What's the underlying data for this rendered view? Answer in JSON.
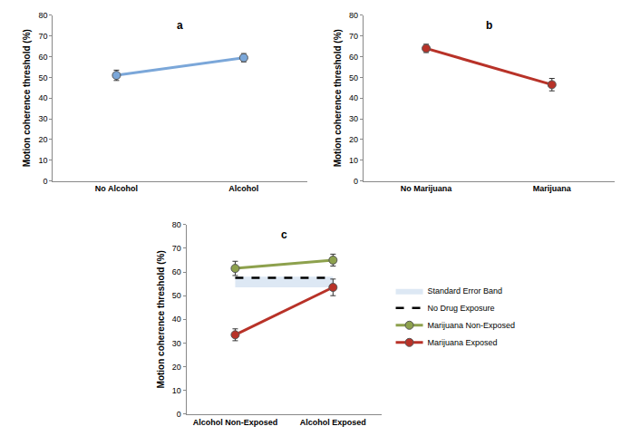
{
  "chart_data": [
    {
      "type": "line",
      "title": "a",
      "categories": [
        "No Alcohol",
        "Alcohol"
      ],
      "y_label": "Motion coherence threshold (%)",
      "ylim": [
        0,
        80
      ],
      "yticks": [
        0,
        10,
        20,
        30,
        40,
        50,
        60,
        70,
        80
      ],
      "grid": false,
      "series": [
        {
          "name": "Alcohol",
          "color": "#7ba7d9",
          "marker": "circle",
          "values": [
            51,
            59.5
          ],
          "errors": [
            2.5,
            2
          ]
        }
      ]
    },
    {
      "type": "line",
      "title": "b",
      "categories": [
        "No Marijuana",
        "Marijuana"
      ],
      "y_label": "Motion coherence threshold (%)",
      "ylim": [
        0,
        80
      ],
      "yticks": [
        0,
        10,
        20,
        30,
        40,
        50,
        60,
        70,
        80
      ],
      "grid": false,
      "series": [
        {
          "name": "Marijuana",
          "color": "#b83228",
          "marker": "circle",
          "values": [
            64,
            46.5
          ],
          "errors": [
            2,
            3
          ]
        }
      ]
    },
    {
      "type": "line",
      "title": "c",
      "categories": [
        "Alcohol Non-Exposed",
        "Alcohol Exposed"
      ],
      "y_label": "Motion coherence threshold (%)",
      "ylim": [
        0,
        80
      ],
      "yticks": [
        0,
        10,
        20,
        30,
        40,
        50,
        60,
        70,
        80
      ],
      "grid": false,
      "legend": "right",
      "series": [
        {
          "name": "Standard Error Band",
          "type": "band",
          "color": "#dde8f4",
          "lower": [
            53.5,
            53.5
          ],
          "upper": [
            58,
            58
          ]
        },
        {
          "name": "No Drug Exposure",
          "color": "#000000",
          "line_style": "dashed",
          "values": [
            57.5,
            57.5
          ]
        },
        {
          "name": "Marijuana Non-Exposed",
          "color": "#8da14d",
          "marker": "circle",
          "values": [
            61.5,
            65
          ],
          "errors": [
            3,
            2.5
          ]
        },
        {
          "name": "Marijuana Exposed",
          "color": "#b83228",
          "marker": "circle",
          "values": [
            33.5,
            53.5
          ],
          "errors": [
            2.5,
            3.5
          ]
        }
      ]
    }
  ]
}
